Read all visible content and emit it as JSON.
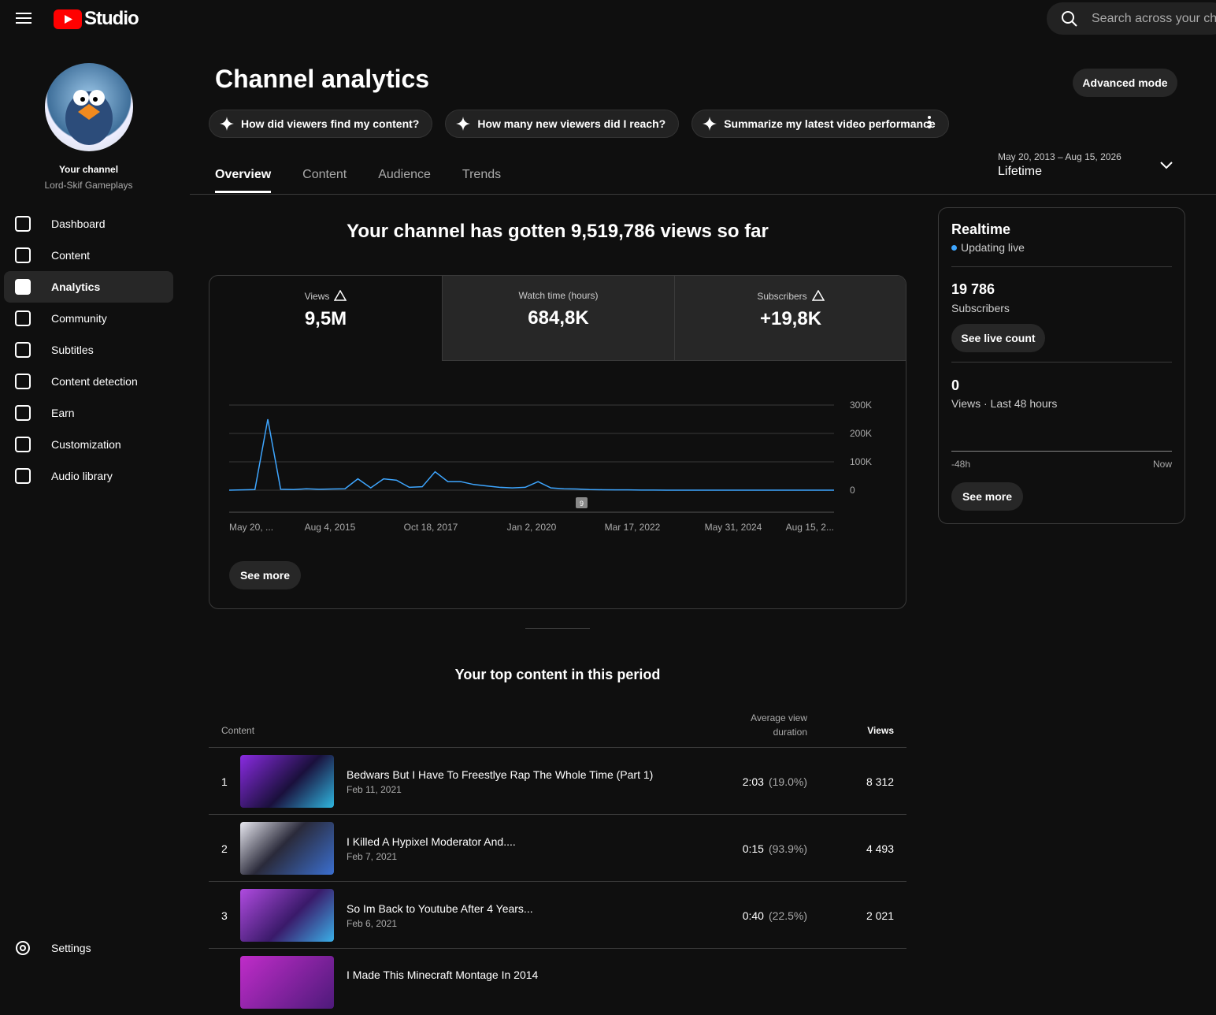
{
  "header": {
    "logo": "Studio",
    "search": "Search across your ch"
  },
  "sidebar": {
    "channel_label": "Your channel",
    "channel_name": "Lord-Skif Gameplays",
    "nav": [
      "Dashboard",
      "Content",
      "Analytics",
      "Community",
      "Subtitles",
      "Content detection",
      "Earn",
      "Customization",
      "Audio library"
    ],
    "settings": "Settings"
  },
  "page": {
    "title": "Channel analytics",
    "advanced": "Advanced mode",
    "prompts": [
      "How did viewers find my content?",
      "How many new viewers did I reach?",
      "Summarize my latest video performance"
    ],
    "tabs": [
      "Overview",
      "Content",
      "Audience",
      "Trends"
    ],
    "date_range": "May 20, 2013 – Aug 15, 2026",
    "period": "Lifetime"
  },
  "summary": {
    "headline": "Your channel has gotten 9,519,786 views so far",
    "metrics": [
      {
        "label": "Views",
        "value": "9,5M"
      },
      {
        "label": "Watch time (hours)",
        "value": "684,8K"
      },
      {
        "label": "Subscribers",
        "value": "+19,8K"
      }
    ],
    "see_more": "See more"
  },
  "chart_data": {
    "type": "line",
    "color": "#3ea6ff",
    "values": [
      0,
      1000,
      2000,
      250000,
      3000,
      2000,
      5000,
      3000,
      4000,
      5000,
      40000,
      8000,
      40000,
      35000,
      10000,
      12000,
      65000,
      30000,
      30000,
      20000,
      15000,
      10000,
      8000,
      10000,
      30000,
      8000,
      5000,
      4000,
      2000,
      1500,
      1000,
      1000,
      500,
      500,
      0,
      0,
      0,
      0,
      0,
      0,
      0,
      0,
      0,
      0,
      0,
      0,
      0,
      0
    ],
    "ylim": [
      0,
      300000
    ],
    "yticks": [
      0,
      {
        "value": 100000,
        "label": "100K"
      },
      {
        "value": 200000,
        "label": "200K"
      },
      {
        "value": 300000,
        "label": "300K"
      }
    ],
    "x_labels": [
      "May 20, ...",
      "Aug 4, 2015",
      "Oct 18, 2017",
      "Jan 2, 2020",
      "Mar 17, 2022",
      "May 31, 2024",
      "Aug 15, 2..."
    ],
    "annotation": "9",
    "grid": true
  },
  "realtime": {
    "title": "Realtime",
    "status": "Updating live",
    "subscribers": "19 786",
    "subscribers_label": "Subscribers",
    "live_button": "See live count",
    "views": "0",
    "views_label": "Views · Last 48 hours",
    "axis_start": "-48h",
    "axis_end": "Now",
    "see_more": "See more"
  },
  "top_content": {
    "title": "Your top content in this period",
    "columns": [
      "Content",
      "Average view duration",
      "Views"
    ],
    "rows": [
      {
        "rank": "1",
        "title": "Bedwars But I Have To Freestlye Rap The Whole Time (Part 1)",
        "date": "Feb 11, 2021",
        "duration": "2:03",
        "percent": "(19.0%)",
        "views": "8 312"
      },
      {
        "rank": "2",
        "title": "I Killed A Hypixel Moderator And....",
        "date": "Feb 7, 2021",
        "duration": "0:15",
        "percent": "(93.9%)",
        "views": "4 493"
      },
      {
        "rank": "3",
        "title": "So Im Back to Youtube After 4 Years...",
        "date": "Feb 6, 2021",
        "duration": "0:40",
        "percent": "(22.5%)",
        "views": "2 021"
      }
    ],
    "partial_row": "I Made This Minecraft Montage In 2014"
  }
}
